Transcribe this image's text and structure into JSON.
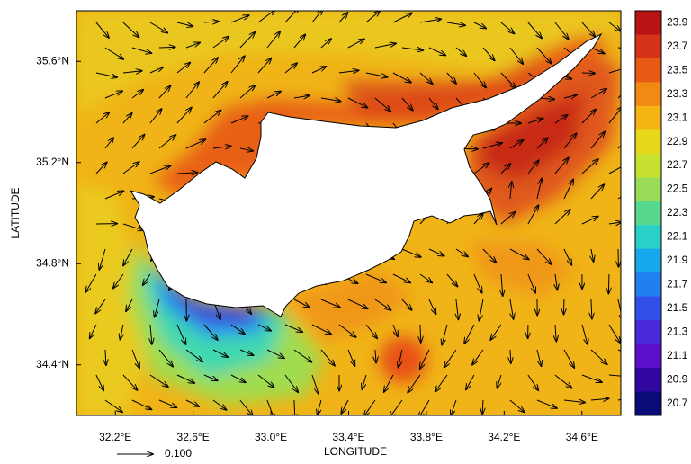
{
  "chart_data": {
    "type": "map",
    "xlabel": "LONGITUDE",
    "ylabel": "LATITUDE",
    "xlim": [
      32.0,
      34.8
    ],
    "ylim": [
      34.2,
      35.8
    ],
    "xticks": [
      {
        "value": 32.2,
        "label": "32.2°E"
      },
      {
        "value": 32.6,
        "label": "32.6°E"
      },
      {
        "value": 33.0,
        "label": "33.0°E"
      },
      {
        "value": 33.4,
        "label": "33.4°E"
      },
      {
        "value": 33.8,
        "label": "33.8°E"
      },
      {
        "value": 34.2,
        "label": "34.2°E"
      },
      {
        "value": 34.6,
        "label": "34.6°E"
      }
    ],
    "yticks": [
      {
        "value": 34.4,
        "label": "34.4°N"
      },
      {
        "value": 34.8,
        "label": "34.8°N"
      },
      {
        "value": 35.2,
        "label": "35.2°N"
      },
      {
        "value": 35.6,
        "label": "35.6°N"
      }
    ],
    "colorbar": {
      "levels": [
        23.9,
        23.7,
        23.5,
        23.3,
        23.1,
        22.9,
        22.7,
        22.5,
        22.3,
        22.1,
        21.9,
        21.7,
        21.5,
        21.3,
        21.1,
        20.9,
        20.7
      ],
      "colors": [
        "#b81414",
        "#d63218",
        "#e85a14",
        "#f08a14",
        "#f4b414",
        "#e8d81c",
        "#c8e030",
        "#98dc58",
        "#58d88c",
        "#28d0c8",
        "#18a8ec",
        "#2080f0",
        "#3050e8",
        "#4a28d8",
        "#5a10c8",
        "#3008a0",
        "#0a0a78"
      ]
    },
    "reference_vector": {
      "value": 0.1,
      "label": "0.100"
    }
  }
}
